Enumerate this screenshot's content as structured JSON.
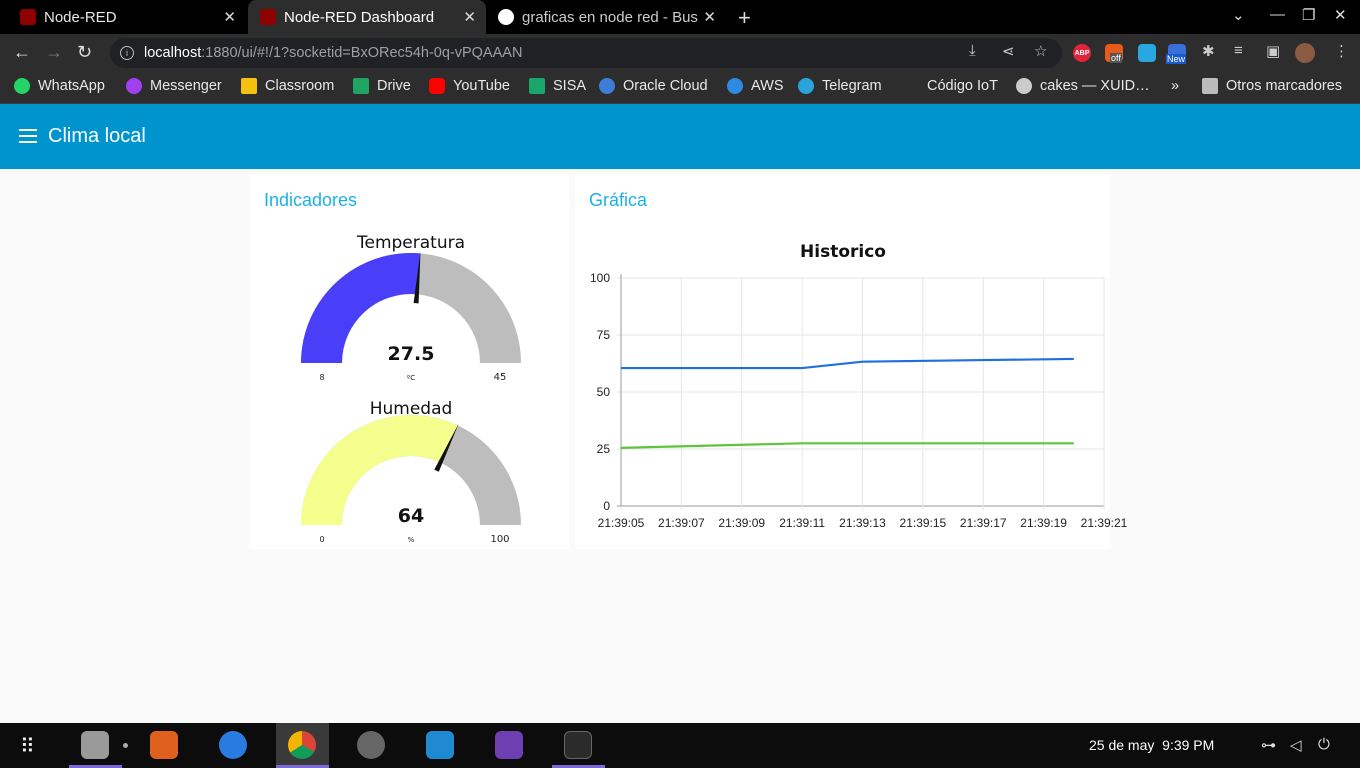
{
  "browser": {
    "tabs": [
      {
        "title": "Node-RED",
        "active": false
      },
      {
        "title": "Node-RED Dashboard",
        "active": true
      },
      {
        "title": "graficas en node red - Bus",
        "active": false
      }
    ],
    "url_host": "localhost",
    "url_rest": ":1880/ui/#!/1?socketid=BxORec54h-0q-vPQAAAN",
    "bookmarks": [
      "WhatsApp",
      "Messenger",
      "Classroom",
      "Drive",
      "YouTube",
      "SISA",
      "Oracle Cloud",
      "AWS",
      "Telegram",
      "Código IoT",
      "cakes — XUID…",
      "Otros marcadores"
    ],
    "overflow": "»",
    "ext_new_badge": "New",
    "ext_off_badge": "off",
    "abp_label": "ABP"
  },
  "dashboard": {
    "title": "Clima local",
    "indicators": {
      "header": "Indicadores",
      "temperature": {
        "label": "Temperatura",
        "value": "27.5",
        "units": "ºC",
        "min": "8",
        "max": "45",
        "numeric": 27.5,
        "min_num": 8,
        "max_num": 45,
        "color": "#4a3ff9"
      },
      "humidity": {
        "label": "Humedad",
        "value": "64",
        "units": "%",
        "min": "0",
        "max": "100",
        "numeric": 64,
        "min_num": 0,
        "max_num": 100,
        "color": "#f4ff8e"
      }
    },
    "chart_card": {
      "header": "Gráfica"
    }
  },
  "chart_data": {
    "type": "line",
    "title": "Historico",
    "x": [
      "21:39:05",
      "21:39:07",
      "21:39:09",
      "21:39:11",
      "21:39:13",
      "21:39:15",
      "21:39:17",
      "21:39:19",
      "21:39:21"
    ],
    "ylim": [
      0,
      100
    ],
    "yticks": [
      "100",
      "75",
      "50",
      "25",
      "0"
    ],
    "grid": true,
    "series": [
      {
        "color": "#1f6fe0",
        "points": [
          [
            "21:39:05",
            60.5
          ],
          [
            "21:39:11",
            60.5
          ],
          [
            "21:39:13",
            63.3
          ],
          [
            "21:39:17",
            64.0
          ],
          [
            "21:39:20",
            64.5
          ]
        ]
      },
      {
        "color": "#5ec43c",
        "points": [
          [
            "21:39:05",
            25.5
          ],
          [
            "21:39:11",
            27.5
          ],
          [
            "21:39:20",
            27.5
          ]
        ]
      }
    ]
  },
  "taskbar": {
    "date": "25 de may",
    "time": "9:39 PM"
  }
}
